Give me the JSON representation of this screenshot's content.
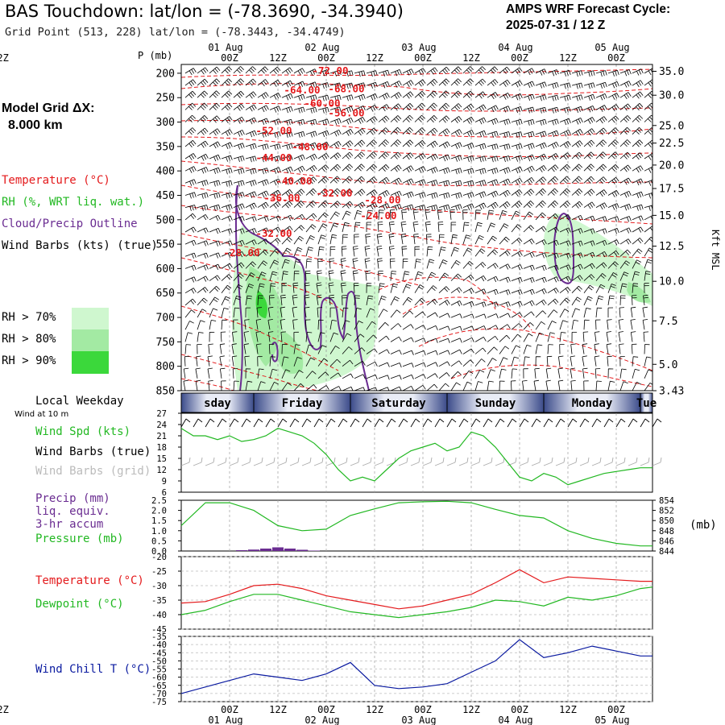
{
  "header": {
    "title": "BAS Touchdown:  lat/lon = (-78.3690, -34.3940)",
    "grid_point": "Grid Point (513, 228) lat/lon = (-78.3443, -34.4749)",
    "cycle_line1": "AMPS WRF Forecast Cycle:",
    "cycle_line2": "2025-07-31 / 12  Z"
  },
  "time_axis": {
    "hour_labels": [
      "00Z",
      "12Z",
      "00Z",
      "12Z",
      "00Z",
      "12Z",
      "00Z",
      "12Z",
      "00Z",
      "12Z"
    ],
    "date_labels": [
      "01 Aug",
      "02 Aug",
      "03 Aug",
      "04 Aug",
      "05 Aug"
    ],
    "weekday_title": "Local Weekday",
    "weekdays": [
      "sday",
      "Friday",
      "Saturday",
      "Sunday",
      "Monday",
      "Tue"
    ]
  },
  "sidebar": {
    "model_grid_label": "Model Grid ΔX:",
    "model_grid_value": "8.000 km",
    "legend_temperature": "Temperature (°C)",
    "legend_rh": "RH (%, WRT liq. wat.)",
    "legend_cloud": "Cloud/Precip Outline",
    "legend_wind": "Wind Barbs (kts) (true)",
    "rh_levels": [
      "RH > 70%",
      "RH > 80%",
      "RH > 90%"
    ],
    "wind10m": "Wind at 10 m",
    "wind_spd": "Wind Spd (kts)",
    "wind_barbs_true": "Wind Barbs (true)",
    "wind_barbs_grid": "Wind Barbs (grid)",
    "precip1": "Precip (mm)",
    "precip2": "liq. equiv.",
    "precip3": "3-hr accum",
    "pressure": "Pressure (mb)",
    "temp": "Temperature (°C)",
    "dew": "Dewpoint (°C)",
    "windchill": "Wind Chill T (°C)"
  },
  "colors": {
    "temperature": "#e41a1c",
    "rh": "#22b822",
    "cloud": "#6a2c91",
    "windchill": "#0a1aa0",
    "rh70": "#cff7cf",
    "rh80": "#a3eaa3",
    "rh90": "#3bd83b"
  },
  "chart_data": [
    {
      "type": "line",
      "name": "upper-air cross-section",
      "ylabel": "P (mb)",
      "ylabel_right": "Kft MSL",
      "pressure_ticks": [
        200,
        250,
        300,
        350,
        400,
        450,
        500,
        550,
        600,
        650,
        700,
        750,
        800,
        850
      ],
      "height_ticks": [
        "35.0",
        "30.0",
        "25.0",
        "22.5",
        "20.0",
        "17.5",
        "15.0",
        "12.5",
        "10.0",
        "7.5",
        "5.0",
        "3.43"
      ],
      "height_ticks_mb": [
        196,
        245,
        307,
        343,
        388,
        436,
        491,
        554,
        626,
        707,
        796,
        850
      ],
      "temperature_labels": [
        {
          "text": "-72.00",
          "hour": 37,
          "p": 195
        },
        {
          "text": "-68.00",
          "hour": 41,
          "p": 232
        },
        {
          "text": "-64.00",
          "hour": 30,
          "p": 235
        },
        {
          "text": "-60.00",
          "hour": 35,
          "p": 262
        },
        {
          "text": "-56.00",
          "hour": 41,
          "p": 282
        },
        {
          "text": "-52.00",
          "hour": 23,
          "p": 318
        },
        {
          "text": "-48.00",
          "hour": 32,
          "p": 351
        },
        {
          "text": "-44.00",
          "hour": 23,
          "p": 373
        },
        {
          "text": "-40.00",
          "hour": 28,
          "p": 421
        },
        {
          "text": "-32.00",
          "hour": 38,
          "p": 446
        },
        {
          "text": "-36.00",
          "hour": 25,
          "p": 456
        },
        {
          "text": "-28.00",
          "hour": 50,
          "p": 460
        },
        {
          "text": "-24.00",
          "hour": 49,
          "p": 492
        },
        {
          "text": "-32.00",
          "hour": 23,
          "p": 528
        },
        {
          "text": "-28.00",
          "hour": 15,
          "p": 568
        }
      ]
    },
    {
      "type": "line",
      "name": "10 m wind speed",
      "ylabel": "kts",
      "ylim": [
        6,
        27
      ],
      "yticks": [
        6,
        9,
        12,
        15,
        18,
        21,
        24,
        27
      ],
      "x_hours": [
        0,
        3,
        6,
        9,
        12,
        15,
        18,
        21,
        24,
        27,
        30,
        33,
        36,
        39,
        42,
        45,
        48,
        51,
        54,
        57,
        60,
        63,
        66,
        69,
        72,
        75,
        78,
        81,
        84,
        87,
        90,
        93,
        96,
        99,
        102,
        105,
        108,
        111,
        114,
        117
      ],
      "series": [
        {
          "values": [
            23,
            21,
            21,
            20,
            21,
            19.5,
            20,
            21,
            23,
            22,
            21,
            19,
            16,
            12,
            9,
            10,
            9,
            12,
            15,
            17,
            18,
            19,
            17,
            18,
            22,
            21,
            18,
            14,
            10,
            9,
            11,
            10,
            8,
            9,
            10,
            11,
            11.5,
            12,
            12.5,
            12.5
          ]
        }
      ]
    },
    {
      "type": "line",
      "name": "precip and surface pressure",
      "ylim_left": [
        0,
        2.5
      ],
      "yticks_left": [
        "0.0",
        "0.5",
        "1.0",
        "1.5",
        "2.0",
        "2.5"
      ],
      "ylim_right": [
        844,
        854
      ],
      "yticks_right": [
        844,
        846,
        848,
        850,
        852,
        854
      ],
      "right_unit": "(mb)",
      "pressure": {
        "x_hours": [
          0,
          6,
          12,
          18,
          24,
          30,
          36,
          42,
          48,
          54,
          60,
          66,
          72,
          78,
          84,
          90,
          96,
          102,
          108,
          114,
          117
        ],
        "values": [
          849,
          853.5,
          853.5,
          852,
          849,
          848,
          848.3,
          851,
          852.3,
          853.5,
          853.7,
          853.8,
          853.5,
          852.2,
          851,
          850.5,
          848,
          846.5,
          845.5,
          845,
          845
        ]
      },
      "precip_bars": {
        "x_hours": [
          15,
          18,
          21,
          24,
          27,
          30,
          33
        ],
        "values": [
          0.04,
          0.07,
          0.12,
          0.18,
          0.12,
          0.06,
          0.02
        ]
      }
    },
    {
      "type": "line",
      "name": "surface temperature and dewpoint",
      "ylim": [
        -45,
        -20
      ],
      "yticks": [
        -45,
        -40,
        -35,
        -30,
        -25,
        -20
      ],
      "x_hours": [
        0,
        6,
        12,
        18,
        24,
        30,
        36,
        42,
        48,
        54,
        60,
        66,
        72,
        78,
        84,
        90,
        96,
        102,
        108,
        114,
        117
      ],
      "series": [
        {
          "name": "Temperature",
          "values": [
            -36,
            -35.5,
            -33,
            -30,
            -29.5,
            -31,
            -33.5,
            -35,
            -36.5,
            -38,
            -37,
            -35,
            -33,
            -29,
            -24.5,
            -29,
            -27,
            -27.5,
            -28,
            -28.5,
            -28.5
          ]
        },
        {
          "name": "Dewpoint",
          "values": [
            -40,
            -38.5,
            -35.5,
            -33,
            -33,
            -35,
            -37,
            -39,
            -40,
            -41,
            -40,
            -39,
            -37.5,
            -35,
            -35.5,
            -37,
            -34,
            -35,
            -33.5,
            -31,
            -30.5
          ]
        }
      ]
    },
    {
      "type": "line",
      "name": "wind chill",
      "ylim": [
        -75,
        -35
      ],
      "yticks": [
        -75,
        -70,
        -65,
        -60,
        -55,
        -50,
        -45,
        -40,
        -35
      ],
      "x_hours": [
        0,
        6,
        12,
        18,
        24,
        30,
        36,
        42,
        48,
        54,
        60,
        66,
        72,
        78,
        84,
        90,
        96,
        102,
        108,
        114,
        117
      ],
      "series": [
        {
          "name": "Wind Chill T",
          "values": [
            -70,
            -66,
            -62,
            -58,
            -60,
            -62,
            -58,
            -51,
            -65,
            -67,
            -66,
            -64,
            -57,
            -50,
            -37,
            -48,
            -45,
            -41,
            -44,
            -47,
            -47
          ]
        }
      ]
    }
  ]
}
